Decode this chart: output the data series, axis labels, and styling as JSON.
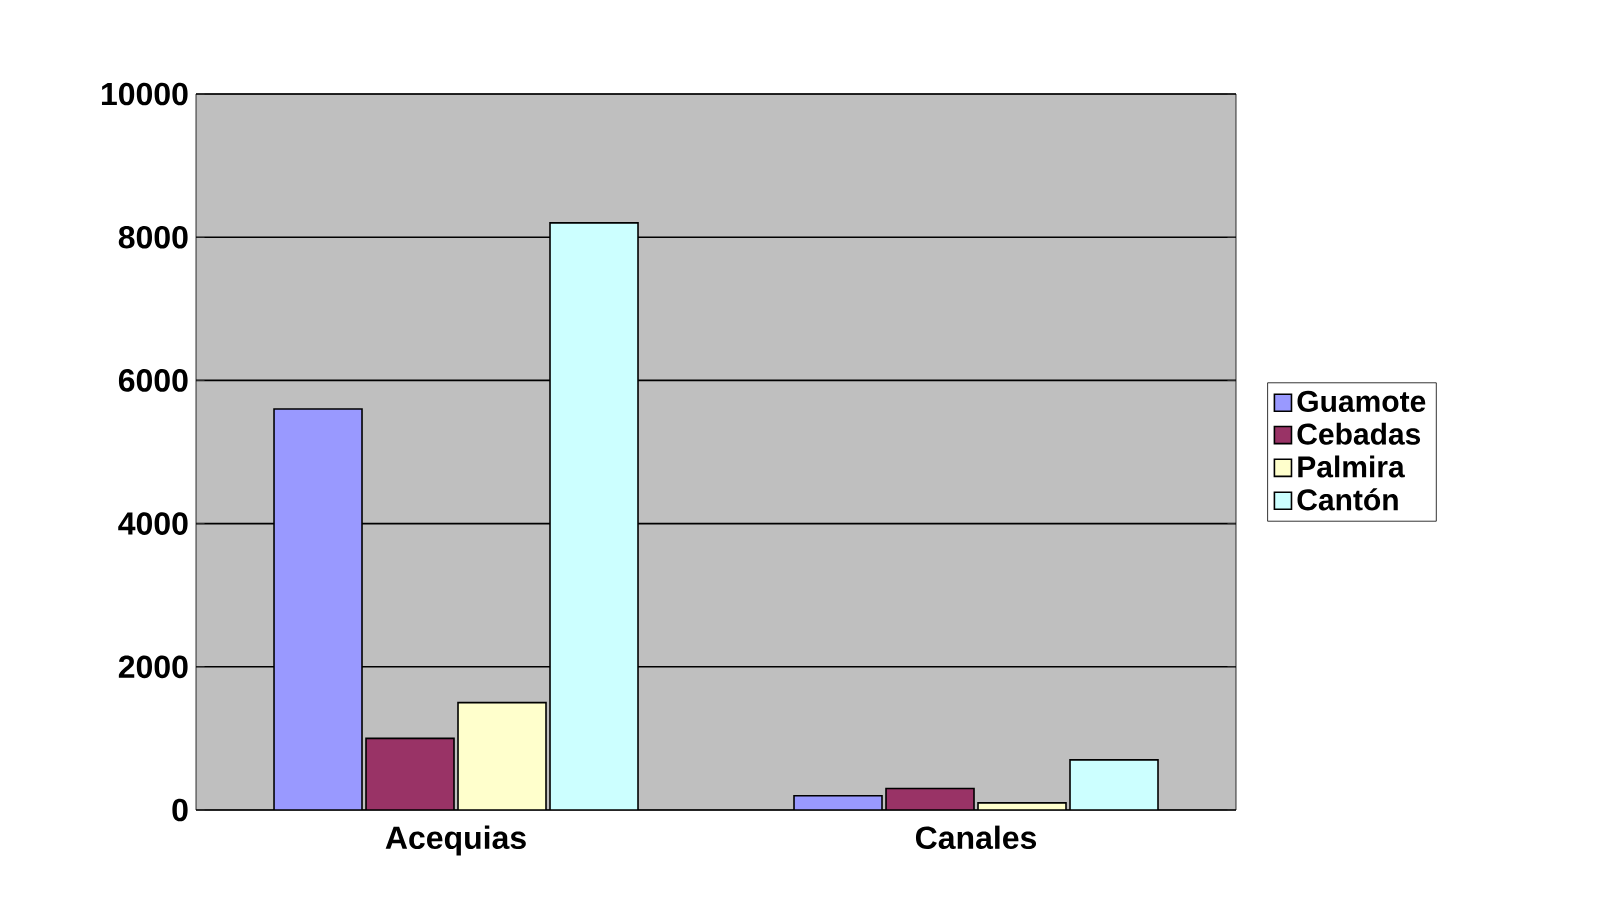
{
  "chart_data": {
    "type": "bar",
    "categories": [
      "Acequias",
      "Canales"
    ],
    "series": [
      {
        "name": "Guamote",
        "color": "#9999ff",
        "values": [
          5600,
          200
        ]
      },
      {
        "name": "Cebadas",
        "color": "#993366",
        "values": [
          1000,
          300
        ]
      },
      {
        "name": "Palmira",
        "color": "#ffffcc",
        "values": [
          1500,
          100
        ]
      },
      {
        "name": "Cantón",
        "color": "#ccffff",
        "values": [
          8200,
          700
        ]
      }
    ],
    "ylim": [
      0,
      10000
    ],
    "yticks": [
      0,
      2000,
      4000,
      6000,
      8000,
      10000
    ],
    "grid": "y",
    "legend": "right"
  }
}
